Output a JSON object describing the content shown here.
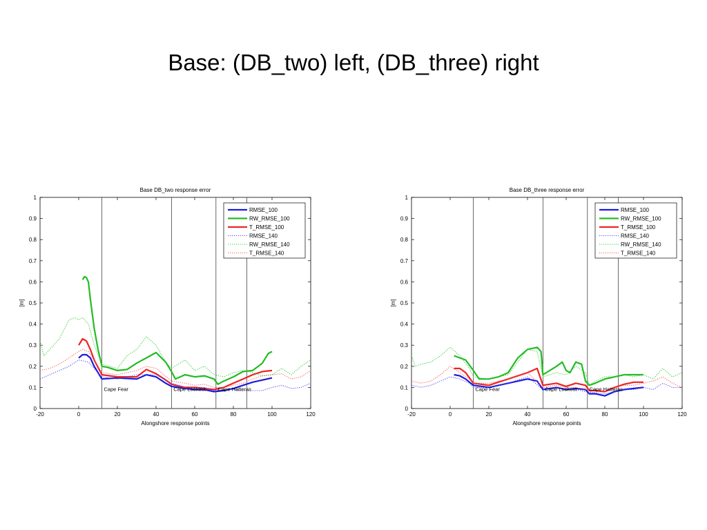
{
  "slide": {
    "title": "Base: (DB_two) left, (DB_three) right"
  },
  "chart_data": [
    {
      "type": "line",
      "title": "Base DB_two response error",
      "xlabel": "Alongshore response points",
      "ylabel": "[m]",
      "xlim": [
        -20,
        120
      ],
      "ylim": [
        0,
        1
      ],
      "xticks": [
        -20,
        0,
        20,
        40,
        60,
        80,
        100,
        120
      ],
      "yticks": [
        0,
        0.1,
        0.2,
        0.3,
        0.4,
        0.5,
        0.6,
        0.7,
        0.8,
        0.9,
        1
      ],
      "grid": false,
      "legend_position": "top-right",
      "vlines": [
        12,
        48,
        71,
        87
      ],
      "annotations": [
        {
          "text": "Cape Fear",
          "x": 13,
          "y": 0.093
        },
        {
          "text": "Cape Lookout",
          "x": 49,
          "y": 0.093
        },
        {
          "text": "Cape Hatteras",
          "x": 72,
          "y": 0.093
        }
      ],
      "series": [
        {
          "name": "RMSE_100",
          "color": "#1a1adc",
          "style": "solid",
          "x": [
            0,
            2,
            4,
            6,
            8,
            12,
            20,
            30,
            35,
            40,
            45,
            48,
            55,
            60,
            65,
            70,
            75,
            80,
            85,
            90,
            95,
            100
          ],
          "y": [
            0.24,
            0.255,
            0.255,
            0.24,
            0.2,
            0.14,
            0.145,
            0.14,
            0.16,
            0.15,
            0.12,
            0.105,
            0.095,
            0.09,
            0.09,
            0.08,
            0.085,
            0.095,
            0.11,
            0.125,
            0.135,
            0.145
          ]
        },
        {
          "name": "RW_RMSE_100",
          "color": "#22bb22",
          "style": "solid",
          "x": [
            2,
            3,
            4,
            5,
            6,
            8,
            10,
            12,
            15,
            20,
            25,
            30,
            35,
            40,
            45,
            48,
            50,
            55,
            60,
            65,
            70,
            72,
            75,
            80,
            85,
            90,
            95,
            98,
            100
          ],
          "y": [
            0.61,
            0.625,
            0.62,
            0.6,
            0.52,
            0.38,
            0.28,
            0.2,
            0.195,
            0.18,
            0.185,
            0.215,
            0.24,
            0.265,
            0.22,
            0.175,
            0.14,
            0.16,
            0.15,
            0.155,
            0.14,
            0.115,
            0.13,
            0.15,
            0.175,
            0.18,
            0.215,
            0.26,
            0.27
          ]
        },
        {
          "name": "T_RMSE_100",
          "color": "#ee2222",
          "style": "solid",
          "x": [
            0,
            2,
            4,
            6,
            8,
            12,
            20,
            30,
            35,
            40,
            45,
            48,
            55,
            60,
            65,
            70,
            75,
            80,
            85,
            90,
            95,
            100
          ],
          "y": [
            0.3,
            0.33,
            0.32,
            0.28,
            0.23,
            0.16,
            0.15,
            0.15,
            0.185,
            0.165,
            0.135,
            0.115,
            0.1,
            0.1,
            0.095,
            0.09,
            0.1,
            0.12,
            0.14,
            0.16,
            0.175,
            0.18
          ]
        },
        {
          "name": "RMSE_140",
          "color": "#4a4af0",
          "style": "dotted",
          "x": [
            -20,
            -15,
            -10,
            -5,
            0,
            5,
            10,
            12,
            20,
            30,
            40,
            48,
            55,
            60,
            65,
            70,
            75,
            80,
            85,
            90,
            95,
            100,
            105,
            110,
            115,
            120
          ],
          "y": [
            0.14,
            0.16,
            0.18,
            0.2,
            0.23,
            0.22,
            0.17,
            0.15,
            0.14,
            0.16,
            0.16,
            0.12,
            0.1,
            0.1,
            0.1,
            0.085,
            0.09,
            0.09,
            0.085,
            0.085,
            0.085,
            0.1,
            0.11,
            0.095,
            0.1,
            0.12
          ]
        },
        {
          "name": "RW_RMSE_140",
          "color": "#33cc33",
          "style": "dotted",
          "x": [
            -20,
            -18,
            -15,
            -10,
            -5,
            -2,
            0,
            2,
            5,
            8,
            12,
            20,
            25,
            30,
            35,
            40,
            45,
            48,
            55,
            60,
            65,
            70,
            75,
            80,
            85,
            90,
            95,
            100,
            105,
            110,
            115,
            120
          ],
          "y": [
            0.32,
            0.25,
            0.28,
            0.33,
            0.42,
            0.43,
            0.42,
            0.43,
            0.4,
            0.3,
            0.21,
            0.19,
            0.25,
            0.28,
            0.34,
            0.3,
            0.22,
            0.19,
            0.23,
            0.18,
            0.2,
            0.16,
            0.15,
            0.17,
            0.18,
            0.17,
            0.155,
            0.16,
            0.19,
            0.16,
            0.2,
            0.23
          ]
        },
        {
          "name": "T_RMSE_140",
          "color": "#ff5555",
          "style": "dotted",
          "x": [
            -20,
            -15,
            -10,
            -5,
            0,
            2,
            5,
            10,
            12,
            20,
            30,
            35,
            40,
            48,
            55,
            60,
            65,
            70,
            75,
            80,
            85,
            90,
            95,
            100,
            105,
            110,
            115,
            120
          ],
          "y": [
            0.18,
            0.19,
            0.21,
            0.24,
            0.27,
            0.28,
            0.27,
            0.2,
            0.17,
            0.16,
            0.18,
            0.2,
            0.19,
            0.13,
            0.12,
            0.11,
            0.115,
            0.1,
            0.1,
            0.11,
            0.12,
            0.14,
            0.155,
            0.16,
            0.165,
            0.14,
            0.15,
            0.18
          ]
        }
      ]
    },
    {
      "type": "line",
      "title": "Base DB_three response error",
      "xlabel": "Alongshore response points",
      "ylabel": "[m]",
      "xlim": [
        -20,
        120
      ],
      "ylim": [
        0,
        1
      ],
      "xticks": [
        -20,
        0,
        20,
        40,
        60,
        80,
        100,
        120
      ],
      "yticks": [
        0,
        0.1,
        0.2,
        0.3,
        0.4,
        0.5,
        0.6,
        0.7,
        0.8,
        0.9,
        1
      ],
      "grid": false,
      "legend_position": "top-right",
      "vlines": [
        12,
        48,
        71,
        87
      ],
      "annotations": [
        {
          "text": "Cape Fear",
          "x": 13,
          "y": 0.093
        },
        {
          "text": "Cape Lookout",
          "x": 49,
          "y": 0.093
        },
        {
          "text": "Cape Hatteras",
          "x": 72,
          "y": 0.093
        }
      ],
      "series": [
        {
          "name": "RMSE_100",
          "color": "#1a1adc",
          "style": "solid",
          "x": [
            2,
            5,
            8,
            12,
            20,
            30,
            40,
            45,
            48,
            55,
            60,
            65,
            70,
            72,
            75,
            80,
            85,
            90,
            95,
            100
          ],
          "y": [
            0.16,
            0.155,
            0.14,
            0.11,
            0.1,
            0.12,
            0.14,
            0.13,
            0.09,
            0.1,
            0.09,
            0.095,
            0.09,
            0.07,
            0.07,
            0.06,
            0.08,
            0.09,
            0.095,
            0.1
          ]
        },
        {
          "name": "RW_RMSE_100",
          "color": "#22bb22",
          "style": "solid",
          "x": [
            2,
            5,
            8,
            12,
            15,
            20,
            25,
            30,
            35,
            40,
            45,
            47,
            48,
            55,
            58,
            60,
            62,
            65,
            68,
            70,
            72,
            75,
            80,
            85,
            90,
            95,
            100
          ],
          "y": [
            0.25,
            0.24,
            0.23,
            0.18,
            0.14,
            0.14,
            0.15,
            0.17,
            0.24,
            0.28,
            0.29,
            0.27,
            0.16,
            0.2,
            0.22,
            0.18,
            0.17,
            0.22,
            0.21,
            0.13,
            0.11,
            0.12,
            0.14,
            0.15,
            0.16,
            0.16,
            0.16
          ]
        },
        {
          "name": "T_RMSE_100",
          "color": "#ee2222",
          "style": "solid",
          "x": [
            2,
            5,
            8,
            12,
            20,
            30,
            40,
            45,
            48,
            55,
            60,
            65,
            70,
            72,
            75,
            80,
            85,
            90,
            95,
            100
          ],
          "y": [
            0.19,
            0.19,
            0.17,
            0.12,
            0.11,
            0.14,
            0.17,
            0.19,
            0.11,
            0.12,
            0.105,
            0.12,
            0.11,
            0.085,
            0.085,
            0.08,
            0.1,
            0.115,
            0.125,
            0.125
          ]
        },
        {
          "name": "RMSE_140",
          "color": "#4a4af0",
          "style": "dotted",
          "x": [
            -20,
            -15,
            -10,
            -5,
            0,
            5,
            10,
            12,
            20,
            30,
            40,
            48,
            55,
            60,
            65,
            70,
            75,
            80,
            85,
            90,
            95,
            100,
            105,
            110,
            115,
            120
          ],
          "y": [
            0.11,
            0.1,
            0.11,
            0.13,
            0.15,
            0.14,
            0.12,
            0.1,
            0.1,
            0.12,
            0.15,
            0.09,
            0.1,
            0.09,
            0.09,
            0.08,
            0.075,
            0.07,
            0.08,
            0.09,
            0.09,
            0.1,
            0.09,
            0.12,
            0.1,
            0.1
          ]
        },
        {
          "name": "RW_RMSE_140",
          "color": "#33cc33",
          "style": "dotted",
          "x": [
            -20,
            -18,
            -15,
            -10,
            -5,
            0,
            5,
            10,
            12,
            20,
            30,
            40,
            45,
            48,
            55,
            60,
            65,
            70,
            72,
            75,
            80,
            85,
            90,
            95,
            100,
            105,
            110,
            115,
            120
          ],
          "y": [
            0.25,
            0.2,
            0.21,
            0.22,
            0.25,
            0.29,
            0.25,
            0.19,
            0.15,
            0.14,
            0.16,
            0.28,
            0.27,
            0.15,
            0.17,
            0.16,
            0.2,
            0.17,
            0.11,
            0.13,
            0.15,
            0.15,
            0.16,
            0.15,
            0.16,
            0.14,
            0.19,
            0.15,
            0.17
          ]
        },
        {
          "name": "T_RMSE_140",
          "color": "#ff5555",
          "style": "dotted",
          "x": [
            -20,
            -15,
            -10,
            -5,
            0,
            5,
            10,
            12,
            20,
            30,
            40,
            48,
            55,
            60,
            65,
            70,
            75,
            80,
            85,
            90,
            95,
            100,
            105,
            110,
            115,
            120
          ],
          "y": [
            0.13,
            0.12,
            0.13,
            0.16,
            0.2,
            0.17,
            0.14,
            0.12,
            0.12,
            0.14,
            0.17,
            0.1,
            0.11,
            0.1,
            0.1,
            0.09,
            0.09,
            0.08,
            0.1,
            0.11,
            0.11,
            0.12,
            0.13,
            0.15,
            0.12,
            0.1
          ]
        }
      ]
    }
  ]
}
